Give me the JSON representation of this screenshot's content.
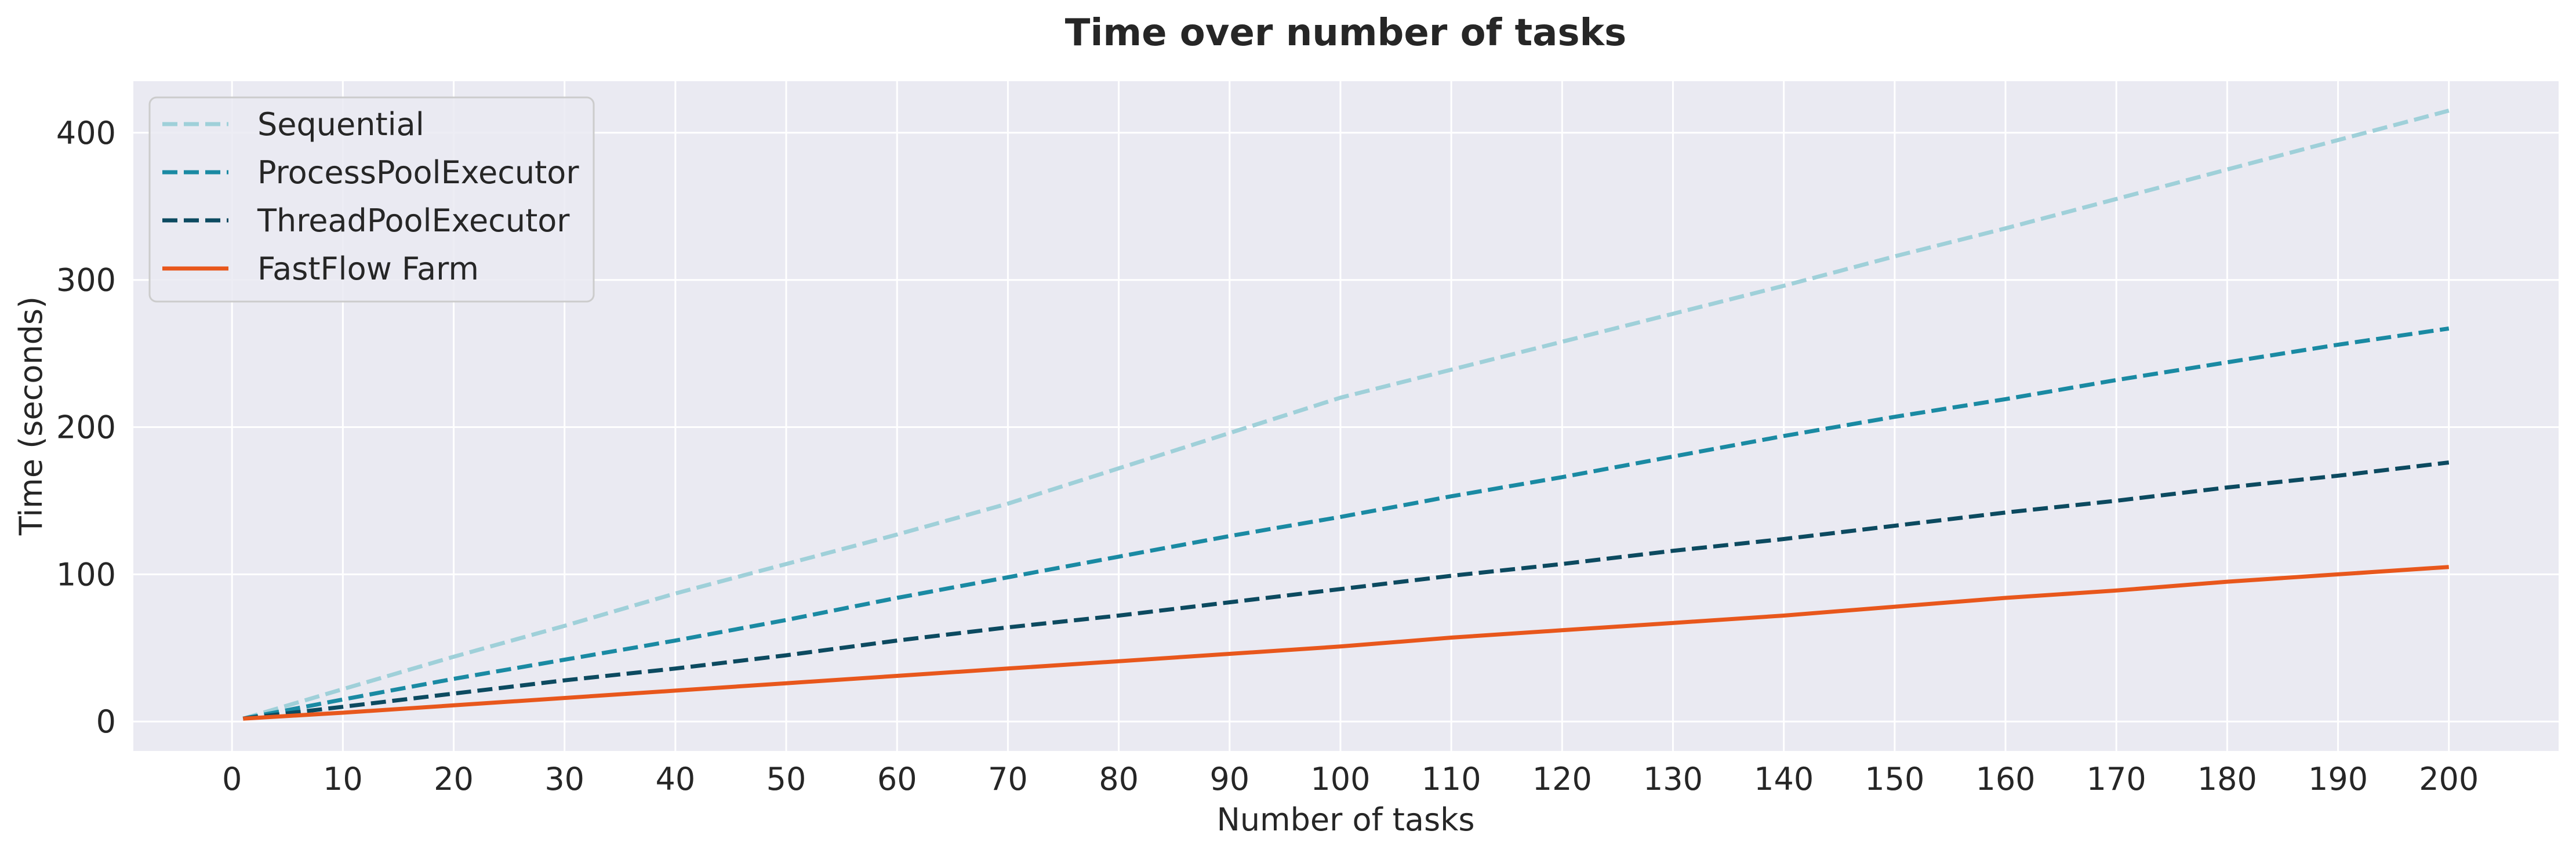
{
  "chart_data": {
    "type": "line",
    "title": "Time over number of tasks",
    "xlabel": "Number of tasks",
    "ylabel": "Time (seconds)",
    "xlim": [
      -8.9,
      209.9
    ],
    "ylim": [
      -20,
      435
    ],
    "xticks": [
      0,
      10,
      20,
      30,
      40,
      50,
      60,
      70,
      80,
      90,
      100,
      110,
      120,
      130,
      140,
      150,
      160,
      170,
      180,
      190,
      200
    ],
    "yticks": [
      0,
      100,
      200,
      300,
      400
    ],
    "grid": true,
    "legend_position": "upper-left",
    "series": [
      {
        "name": "Sequential",
        "color": "#9fd0d9",
        "dashed": true,
        "x": [
          1,
          10,
          20,
          30,
          40,
          50,
          60,
          70,
          80,
          90,
          100,
          110,
          120,
          130,
          140,
          150,
          160,
          170,
          180,
          190,
          200
        ],
        "y": [
          2,
          22,
          44,
          65,
          87,
          107,
          127,
          148,
          172,
          196,
          220,
          239,
          258,
          277,
          296,
          316,
          335,
          355,
          375,
          395,
          415
        ]
      },
      {
        "name": "ProcessPoolExecutor",
        "color": "#1a8aa3",
        "dashed": true,
        "x": [
          1,
          10,
          20,
          30,
          40,
          50,
          60,
          70,
          80,
          90,
          100,
          110,
          120,
          130,
          140,
          150,
          160,
          170,
          180,
          190,
          200
        ],
        "y": [
          2,
          15,
          29,
          42,
          55,
          69,
          84,
          98,
          112,
          126,
          139,
          153,
          166,
          180,
          194,
          207,
          219,
          232,
          244,
          256,
          267
        ]
      },
      {
        "name": "ThreadPoolExecutor",
        "color": "#0c4a60",
        "dashed": true,
        "x": [
          1,
          10,
          20,
          30,
          40,
          50,
          60,
          70,
          80,
          90,
          100,
          110,
          120,
          130,
          140,
          150,
          160,
          170,
          180,
          190,
          200
        ],
        "y": [
          2,
          10,
          19,
          28,
          36,
          45,
          55,
          64,
          72,
          81,
          90,
          99,
          107,
          116,
          124,
          133,
          142,
          150,
          159,
          167,
          176
        ]
      },
      {
        "name": "FastFlow Farm",
        "color": "#e8571c",
        "dashed": false,
        "x": [
          1,
          10,
          20,
          30,
          40,
          50,
          60,
          70,
          80,
          90,
          100,
          110,
          120,
          130,
          140,
          150,
          160,
          170,
          180,
          190,
          200
        ],
        "y": [
          2,
          6,
          11,
          16,
          21,
          26,
          31,
          36,
          41,
          46,
          51,
          57,
          62,
          67,
          72,
          78,
          84,
          89,
          95,
          100,
          105
        ]
      }
    ]
  }
}
